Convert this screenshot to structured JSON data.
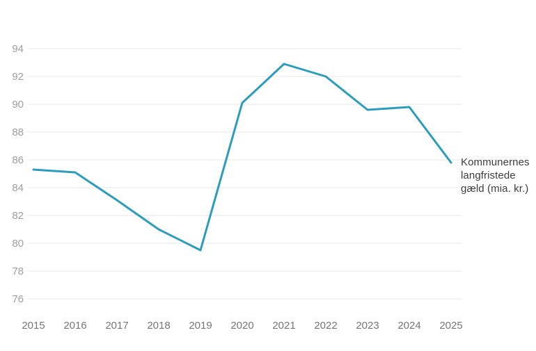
{
  "page": {
    "background_color": "#ffffff"
  },
  "annotation": {
    "lines": [
      "Kommunernes",
      "langfristede",
      "gæld (mia. kr.)"
    ],
    "full_text": "Kommunernes langfristede gæld (mia. kr.)",
    "color": "#3c3c3c"
  },
  "chart_data": {
    "type": "line",
    "title": "",
    "xlabel": "",
    "ylabel": "",
    "categories": [
      "2015",
      "2016",
      "2017",
      "2018",
      "2019",
      "2020",
      "2021",
      "2022",
      "2023",
      "2024",
      "2025"
    ],
    "series": [
      {
        "name": "Kommunernes langfristede gæld (mia. kr.)",
        "values": [
          85.3,
          85.1,
          83.1,
          81.0,
          79.5,
          90.1,
          92.9,
          92.0,
          89.6,
          89.8,
          85.8
        ]
      }
    ],
    "ylim": [
      76,
      94
    ],
    "yticks": [
      76,
      78,
      80,
      82,
      84,
      86,
      88,
      90,
      92,
      94
    ],
    "grid": true,
    "legend_position": "right-of-line-end",
    "colors": {
      "line": "#2b9cbd",
      "gridline": "#e4e4e4",
      "ytick_label": "#9e9e9e",
      "xtick_label": "#757575"
    }
  }
}
